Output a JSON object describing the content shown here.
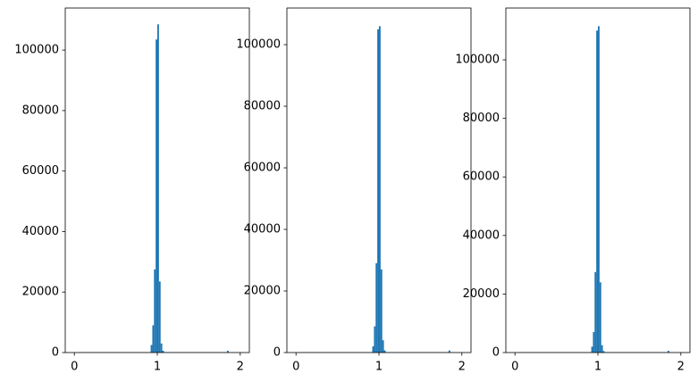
{
  "chart_data": [
    {
      "type": "histogram",
      "color": "#1f77b4",
      "bins": [
        0.04,
        0.92,
        0.94,
        0.96,
        0.98,
        1.0,
        1.02,
        1.04,
        1.06,
        1.08,
        1.84,
        1.86,
        1.98
      ],
      "values": [
        100,
        2500,
        9000,
        27500,
        103500,
        108500,
        23500,
        3000,
        600,
        100,
        600,
        50
      ],
      "xlim": [
        -0.11,
        2.11
      ],
      "xticks": [
        0,
        1,
        2
      ],
      "ylim": [
        0,
        113900
      ],
      "yticks": [
        0,
        20000,
        40000,
        60000,
        80000,
        100000
      ]
    },
    {
      "type": "histogram",
      "color": "#1f77b4",
      "bins": [
        0.04,
        0.92,
        0.94,
        0.96,
        0.98,
        1.0,
        1.02,
        1.04,
        1.06,
        1.08,
        1.84,
        1.86,
        1.98
      ],
      "values": [
        100,
        2000,
        8500,
        29000,
        105000,
        106000,
        27000,
        4000,
        700,
        100,
        700,
        50
      ],
      "xlim": [
        -0.11,
        2.11
      ],
      "xticks": [
        0,
        1,
        2
      ],
      "ylim": [
        0,
        111900
      ],
      "yticks": [
        0,
        20000,
        40000,
        60000,
        80000,
        100000
      ]
    },
    {
      "type": "histogram",
      "color": "#1f77b4",
      "bins": [
        0.04,
        0.92,
        0.94,
        0.96,
        0.98,
        1.0,
        1.02,
        1.04,
        1.06,
        1.08,
        1.84,
        1.86,
        1.98
      ],
      "values": [
        100,
        2000,
        7000,
        27500,
        110000,
        111500,
        24000,
        2500,
        500,
        100,
        600,
        50
      ],
      "xlim": [
        -0.11,
        2.11
      ],
      "xticks": [
        0,
        1,
        2
      ],
      "ylim": [
        0,
        117700
      ],
      "yticks": [
        0,
        20000,
        40000,
        60000,
        80000,
        100000
      ]
    }
  ]
}
